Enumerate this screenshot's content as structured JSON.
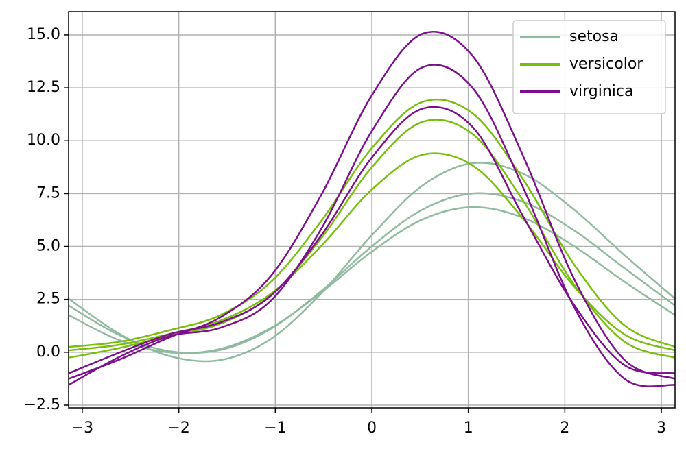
{
  "chart_data": {
    "type": "andrews",
    "x": [
      -3.1416,
      -2.618,
      -2.0944,
      -1.5708,
      -1.0472,
      -0.5236,
      0,
      0.5236,
      1.0472,
      1.5708,
      2.0944,
      2.618,
      3.1416
    ],
    "series": [
      {
        "name": "setosa",
        "color": "#8fba9f",
        "lines": [
          [
            2.206,
            0.817,
            0.048,
            0.106,
            1.102,
            2.895,
            5.006,
            6.741,
            7.51,
            7.106,
            5.764,
            3.971,
            2.206
          ],
          [
            1.753,
            0.577,
            -0.009,
            0.153,
            1.145,
            2.829,
            4.753,
            6.275,
            6.861,
            6.353,
            5.015,
            3.331,
            1.753
          ],
          [
            2.531,
            0.878,
            -0.183,
            -0.369,
            0.625,
            2.784,
            5.531,
            7.876,
            8.937,
            8.431,
            6.745,
            4.586,
            2.531
          ]
        ]
      },
      {
        "name": "versicolor",
        "color": "#77bf0a",
        "lines": [
          [
            0.25,
            0.492,
            1.041,
            1.75,
            3.317,
            6.208,
            9.65,
            11.832,
            11.283,
            8.15,
            4.159,
            1.268,
            0.25
          ],
          [
            0.089,
            0.351,
            0.864,
            1.489,
            2.758,
            5.027,
            7.689,
            9.333,
            8.82,
            6.289,
            3.114,
            0.845,
            0.089
          ],
          [
            -0.257,
            0.195,
            0.781,
            1.343,
            2.683,
            5.391,
            8.743,
            10.889,
            10.303,
            7.143,
            3.205,
            0.497,
            -0.257
          ]
        ]
      },
      {
        "name": "virginica",
        "color": "#7d0f8e",
        "lines": [
          [
            -1.545,
            -0.226,
            0.762,
            1.155,
            2.432,
            5.836,
            10.455,
            13.466,
            12.478,
            7.755,
            2.148,
            -1.256,
            -1.545
          ],
          [
            -1.255,
            -0.352,
            0.709,
            1.645,
            3.599,
            7.442,
            12.145,
            15.052,
            13.991,
            9.245,
            3.481,
            -0.362,
            -1.255
          ],
          [
            -0.999,
            -0.021,
            0.858,
            1.401,
            2.668,
            5.523,
            9.201,
            11.513,
            10.634,
            6.401,
            2.244,
            -0.611,
            -0.999
          ]
        ]
      }
    ],
    "xlim": [
      -3.1416,
      3.1416
    ],
    "xticks": [
      {
        "value": -3,
        "label": "−3"
      },
      {
        "value": -2,
        "label": "−2"
      },
      {
        "value": -1,
        "label": "−1"
      },
      0,
      1,
      2,
      3
    ],
    "ylim": [
      -2.63,
      16.1
    ],
    "yticks": [
      {
        "value": -2.5,
        "label": "−2.5"
      },
      {
        "value": 0,
        "label": "0.0"
      },
      {
        "value": 2.5,
        "label": "2.5"
      },
      {
        "value": 5,
        "label": "5.0"
      },
      {
        "value": 7.5,
        "label": "7.5"
      },
      {
        "value": 10,
        "label": "10.0"
      },
      {
        "value": 12.5,
        "label": "12.5"
      },
      {
        "value": 15,
        "label": "15.0"
      }
    ],
    "grid": true,
    "legend": "upper right"
  }
}
